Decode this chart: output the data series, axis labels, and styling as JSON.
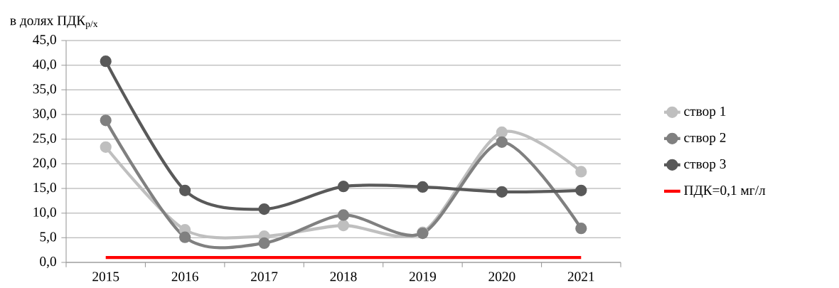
{
  "chart_data": {
    "type": "line",
    "ylabel": "в долях ПДК$_{р/х}$",
    "categories": [
      "2015",
      "2016",
      "2017",
      "2018",
      "2019",
      "2020",
      "2021"
    ],
    "series": [
      {
        "name": "створ 1",
        "color": "#bfbfbf",
        "values": [
          23.4,
          6.6,
          5.3,
          7.5,
          6.1,
          26.4,
          18.4
        ]
      },
      {
        "name": "створ 2",
        "color": "#808080",
        "values": [
          28.8,
          5.1,
          3.9,
          9.6,
          5.9,
          24.4,
          6.9
        ]
      },
      {
        "name": "створ 3",
        "color": "#595959",
        "values": [
          40.8,
          14.6,
          10.8,
          15.4,
          15.3,
          14.3,
          14.6
        ]
      },
      {
        "name": "ПДК=0,1 мг/л",
        "color": "#ff0000",
        "marker": "none",
        "values": [
          1.0,
          1.0,
          1.0,
          1.0,
          1.0,
          1.0,
          1.0
        ]
      }
    ],
    "ylim": [
      0,
      45
    ],
    "yticks": [
      {
        "value": 0,
        "label": "0,0"
      },
      {
        "value": 5,
        "label": "5,0"
      },
      {
        "value": 10,
        "label": "10,0"
      },
      {
        "value": 15,
        "label": "15,0"
      },
      {
        "value": 20,
        "label": "20,0"
      },
      {
        "value": 25,
        "label": "25,0"
      },
      {
        "value": 30,
        "label": "30,0"
      },
      {
        "value": 35,
        "label": "35,0"
      },
      {
        "value": 40,
        "label": "40,0"
      },
      {
        "value": 45,
        "label": "45,0"
      }
    ],
    "grid": "y",
    "legend": "right",
    "marker": "circle",
    "line_style": "solid"
  }
}
